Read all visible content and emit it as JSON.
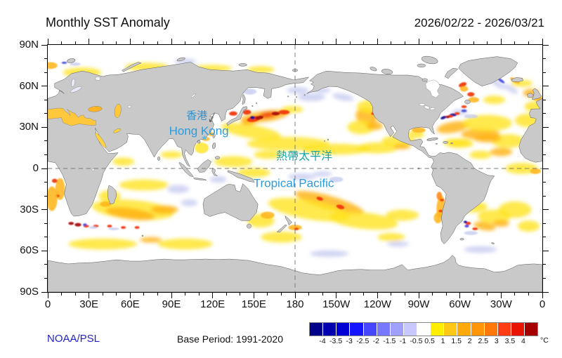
{
  "header": {
    "title": "Monthly SST Anomaly",
    "date_range": "2026/02/22 - 2026/03/21"
  },
  "footer": {
    "source": "NOAA/PSL",
    "base_period": "Base Period: 1991-2020"
  },
  "map_labels": {
    "hk_zh": "香港",
    "hk_en": "Hong Kong",
    "hk_marker": "★",
    "tp_zh": "熱帶太平洋",
    "tp_en": "Tropical Pacific"
  },
  "colors": {
    "label_blue": "#2D9BD9",
    "label_teal": "#1AA3A8",
    "source_blue": "#2222CC",
    "land_gray": "#C9C9C9",
    "coast_stroke": "#555555",
    "ocean_white": "#FFFFFF",
    "dash_gray": "#7A7A7A"
  },
  "axes": {
    "x": {
      "major_step_deg": 30,
      "minor_step_deg": 10,
      "labels": [
        {
          "deg": 0,
          "label": "0"
        },
        {
          "deg": 30,
          "label": "30E"
        },
        {
          "deg": 60,
          "label": "60E"
        },
        {
          "deg": 90,
          "label": "90E"
        },
        {
          "deg": 120,
          "label": "120E"
        },
        {
          "deg": 150,
          "label": "150E"
        },
        {
          "deg": 180,
          "label": "180"
        },
        {
          "deg": 210,
          "label": "150W"
        },
        {
          "deg": 240,
          "label": "120W"
        },
        {
          "deg": 270,
          "label": "90W"
        },
        {
          "deg": 300,
          "label": "60W"
        },
        {
          "deg": 330,
          "label": "30W"
        },
        {
          "deg": 360,
          "label": "0"
        }
      ]
    },
    "y": {
      "major_step_deg": 30,
      "minor_step_deg": 10,
      "labels": [
        {
          "deg": 0,
          "label": "90N"
        },
        {
          "deg": 30,
          "label": "60N"
        },
        {
          "deg": 60,
          "label": "30N"
        },
        {
          "deg": 90,
          "label": "0"
        },
        {
          "deg": 120,
          "label": "30S"
        },
        {
          "deg": 150,
          "label": "60S"
        },
        {
          "deg": 180,
          "label": "90S"
        }
      ]
    }
  },
  "colorbar": {
    "unit": "°C",
    "tick_labels": [
      "-4",
      "-3.5",
      "-3",
      "-2.5",
      "-2",
      "-1.5",
      "-1",
      "-0.5",
      "0.5",
      "1",
      "1.5",
      "2",
      "2.5",
      "3",
      "3.5",
      "4"
    ],
    "colors": [
      "#00008B",
      "#0000AE",
      "#0000D4",
      "#1414FF",
      "#4646FF",
      "#7878FF",
      "#A0A0FF",
      "#C8C8FF",
      "#FFFFFF",
      "#FFEE00",
      "#FFC814",
      "#FFAA0A",
      "#FF960A",
      "#FF780A",
      "#FF3C14",
      "#E61400",
      "#A50000"
    ]
  },
  "map": {
    "palette": {
      "y": "#FFE41E",
      "o": "#FFB414",
      "d": "#FF8C14",
      "r": "#EF3A10",
      "m": "#A81208",
      "lb": "#C6CAF0",
      "b": "#4046E0",
      "nb": "#0C0C96",
      "w": "#FFFFFF"
    },
    "opacity": {
      "y": 0.8,
      "o": 0.85,
      "d": 0.9,
      "r": 0.95,
      "m": 0.95,
      "lb": 0.78,
      "b": 0.9,
      "nb": 0.95,
      "w": 0.9
    },
    "anomaly_blobs": [
      [
        148,
        63,
        22,
        5,
        10,
        "y"
      ],
      [
        175,
        72,
        30,
        5,
        0,
        "y"
      ],
      [
        210,
        76,
        25,
        4,
        0,
        "y"
      ],
      [
        240,
        75,
        15,
        4,
        0,
        "y"
      ],
      [
        158,
        52,
        18,
        4,
        -8,
        "o"
      ],
      [
        150,
        54,
        5,
        2,
        -10,
        "r"
      ],
      [
        160,
        51,
        6,
        2,
        -8,
        "r"
      ],
      [
        154,
        53,
        3,
        1.3,
        -10,
        "m"
      ],
      [
        166,
        50,
        3,
        1.3,
        0,
        "m"
      ],
      [
        172,
        49,
        4,
        1.6,
        0,
        "r"
      ],
      [
        149,
        53,
        1.8,
        1.1,
        0,
        "nb"
      ],
      [
        145,
        49,
        3,
        1.8,
        0,
        "r"
      ],
      [
        135,
        50,
        3,
        1.6,
        0,
        "r"
      ],
      [
        147,
        56,
        6,
        2.2,
        -10,
        "o"
      ],
      [
        178,
        47,
        8,
        2.5,
        0,
        "y"
      ],
      [
        180,
        57,
        9,
        3.5,
        0,
        "w"
      ],
      [
        192,
        38,
        10,
        3,
        0,
        "lb"
      ],
      [
        182,
        33,
        8,
        2.5,
        0,
        "lb"
      ],
      [
        200,
        33,
        6,
        2,
        0,
        "lb"
      ],
      [
        215,
        38,
        8,
        2.5,
        10,
        "lb"
      ],
      [
        230,
        33,
        5,
        2,
        0,
        "lb"
      ],
      [
        232,
        52,
        8,
        6,
        15,
        "o"
      ],
      [
        235,
        45,
        10,
        5,
        0,
        "y"
      ],
      [
        228,
        60,
        10,
        5,
        0,
        "y"
      ],
      [
        238,
        59,
        6,
        3,
        0,
        "o"
      ],
      [
        237,
        50,
        1.6,
        1,
        0,
        "r"
      ],
      [
        255,
        70,
        12,
        4,
        0,
        "y"
      ],
      [
        258,
        74,
        6,
        2,
        0,
        "o"
      ],
      [
        135,
        85,
        14,
        4,
        0,
        "y"
      ],
      [
        150,
        93,
        12,
        3.5,
        0,
        "y"
      ],
      [
        160,
        80,
        10,
        3,
        0,
        "y"
      ],
      [
        185,
        96,
        10,
        2.5,
        0,
        "lb"
      ],
      [
        200,
        94,
        7,
        2,
        0,
        "lb"
      ],
      [
        210,
        98,
        5,
        2,
        0,
        "lb"
      ],
      [
        252,
        88,
        22,
        6,
        0,
        "w"
      ],
      [
        205,
        115,
        26,
        5,
        16,
        "o"
      ],
      [
        213,
        118,
        3,
        1.5,
        16,
        "r"
      ],
      [
        198,
        112,
        2.5,
        1.3,
        16,
        "r"
      ],
      [
        190,
        120,
        30,
        7,
        10,
        "y"
      ],
      [
        230,
        128,
        25,
        6,
        6,
        "y"
      ],
      [
        258,
        124,
        12,
        4,
        0,
        "y"
      ],
      [
        286,
        118,
        3,
        8,
        5,
        "o"
      ],
      [
        287,
        113,
        1.6,
        1,
        0,
        "r"
      ],
      [
        286,
        121,
        1.6,
        1,
        0,
        "r"
      ],
      [
        284,
        126,
        3,
        4,
        0,
        "o"
      ],
      [
        285,
        110,
        2,
        3,
        0,
        "d"
      ],
      [
        155,
        128,
        10,
        5,
        0,
        "y"
      ],
      [
        160,
        124,
        5,
        2.5,
        0,
        "o"
      ],
      [
        180,
        133,
        5,
        2,
        0,
        "o"
      ],
      [
        181,
        134,
        1.6,
        1,
        0,
        "r"
      ],
      [
        170,
        140,
        15,
        4,
        0,
        "y"
      ],
      [
        205,
        152,
        14,
        2.5,
        0,
        "lb"
      ],
      [
        255,
        145,
        8,
        2,
        0,
        "lb"
      ],
      [
        250,
        140,
        10,
        3,
        0,
        "y"
      ],
      [
        315,
        149,
        12,
        2.5,
        0,
        "lb"
      ],
      [
        62,
        120,
        30,
        7,
        5,
        "y"
      ],
      [
        60,
        123,
        18,
        4,
        8,
        "o"
      ],
      [
        85,
        120,
        10,
        3,
        0,
        "o"
      ],
      [
        22,
        131,
        2.4,
        1.3,
        0,
        "m"
      ],
      [
        17,
        130,
        2,
        1.1,
        0,
        "m"
      ],
      [
        28,
        132,
        2,
        1,
        0,
        "r"
      ],
      [
        27,
        131,
        1.4,
        1,
        0,
        "b"
      ],
      [
        35,
        132,
        2,
        1,
        0,
        "r"
      ],
      [
        45,
        132,
        1.8,
        1,
        0,
        "r"
      ],
      [
        55,
        133,
        1.8,
        1,
        0,
        "r"
      ],
      [
        65,
        133,
        1.8,
        1,
        0,
        "r"
      ],
      [
        33,
        133,
        3,
        1,
        0,
        "lb"
      ],
      [
        48,
        134,
        4,
        1,
        0,
        "lb"
      ],
      [
        45,
        110,
        8,
        4,
        0,
        "y"
      ],
      [
        42,
        116,
        4,
        2,
        0,
        "o"
      ],
      [
        70,
        102,
        18,
        4,
        0,
        "y"
      ],
      [
        55,
        85,
        8,
        3,
        0,
        "y"
      ],
      [
        95,
        105,
        8,
        3,
        0,
        "lb"
      ],
      [
        103,
        115,
        6,
        2.5,
        0,
        "lb"
      ],
      [
        90,
        80,
        8,
        2.5,
        0,
        "y"
      ],
      [
        40,
        145,
        25,
        4,
        0,
        "y"
      ],
      [
        100,
        145,
        20,
        4,
        0,
        "y"
      ],
      [
        75,
        142,
        8,
        2,
        0,
        "o"
      ],
      [
        288,
        53,
        2.2,
        1,
        -20,
        "nb"
      ],
      [
        295,
        51,
        2.6,
        1,
        0,
        "nb"
      ],
      [
        293,
        52,
        2,
        1,
        0,
        "r"
      ],
      [
        298,
        50,
        2,
        1,
        0,
        "r"
      ],
      [
        291,
        52.5,
        1.6,
        0.9,
        0,
        "m"
      ],
      [
        300,
        49,
        6,
        2,
        0,
        "lb"
      ],
      [
        303,
        48,
        2,
        1,
        0,
        "b"
      ],
      [
        308,
        52,
        5,
        1.5,
        0,
        "lb"
      ],
      [
        303,
        45,
        2,
        1,
        0,
        "r"
      ],
      [
        295,
        60,
        12,
        4,
        -10,
        "o"
      ],
      [
        315,
        65,
        14,
        4,
        0,
        "o"
      ],
      [
        320,
        57,
        18,
        6,
        0,
        "y"
      ],
      [
        335,
        70,
        12,
        5,
        0,
        "y"
      ],
      [
        330,
        78,
        8,
        3,
        0,
        "o"
      ],
      [
        300,
        72,
        10,
        3,
        0,
        "y"
      ],
      [
        320,
        68,
        10,
        3,
        0,
        "o"
      ],
      [
        315,
        80,
        8,
        3,
        0,
        "y"
      ],
      [
        298,
        71,
        10,
        3,
        0,
        "y"
      ],
      [
        270,
        62,
        5,
        2,
        0,
        "o"
      ],
      [
        268,
        65,
        6,
        3,
        0,
        "y"
      ],
      [
        302,
        29,
        3,
        1.6,
        -20,
        "r"
      ],
      [
        303,
        32,
        3,
        2,
        0,
        "o"
      ],
      [
        308,
        36,
        2.6,
        1.6,
        0,
        "r"
      ],
      [
        310,
        40,
        4,
        2,
        0,
        "o"
      ],
      [
        327,
        28,
        7,
        2,
        35,
        "lb"
      ],
      [
        330,
        26,
        3,
        1,
        35,
        "b"
      ],
      [
        337,
        32,
        6,
        2,
        30,
        "lb"
      ],
      [
        340,
        26,
        4,
        1.5,
        30,
        "o"
      ],
      [
        345,
        28,
        8,
        2.5,
        0,
        "y"
      ],
      [
        352,
        35,
        6,
        3,
        0,
        "o"
      ],
      [
        357,
        39,
        4,
        2,
        0,
        "o"
      ],
      [
        355,
        45,
        8,
        4,
        0,
        "y"
      ],
      [
        350,
        55,
        10,
        5,
        0,
        "y"
      ],
      [
        325,
        40,
        8,
        3,
        0,
        "y"
      ],
      [
        345,
        90,
        12,
        4,
        0,
        "y"
      ],
      [
        355,
        92,
        4,
        2,
        0,
        "o"
      ],
      [
        9,
        105,
        3.5,
        8,
        0,
        "o"
      ],
      [
        7,
        110,
        1.6,
        1,
        0,
        "r"
      ],
      [
        3,
        112,
        4,
        9,
        0,
        "o"
      ],
      [
        5,
        99,
        2,
        1.5,
        0,
        "r"
      ],
      [
        306,
        130,
        2,
        1.2,
        0,
        "r"
      ],
      [
        305,
        132,
        1.6,
        1,
        0,
        "b"
      ],
      [
        304,
        129,
        1.3,
        0.9,
        0,
        "nb"
      ],
      [
        311,
        134,
        2,
        1,
        0,
        "r"
      ],
      [
        318,
        132,
        8,
        3,
        10,
        "o"
      ],
      [
        308,
        137,
        5,
        1.5,
        0,
        "lb"
      ],
      [
        325,
        125,
        12,
        5,
        0,
        "y"
      ],
      [
        310,
        118,
        10,
        4,
        0,
        "y"
      ],
      [
        330,
        130,
        6,
        2.5,
        0,
        "o"
      ],
      [
        340,
        120,
        12,
        6,
        0,
        "y"
      ],
      [
        350,
        132,
        8,
        4,
        0,
        "y"
      ],
      [
        25,
        20,
        14,
        3.5,
        0,
        "y"
      ],
      [
        72,
        16,
        16,
        3,
        0,
        "y"
      ],
      [
        120,
        17,
        14,
        2.5,
        0,
        "y"
      ],
      [
        155,
        18,
        10,
        2.5,
        0,
        "y"
      ],
      [
        2,
        15,
        5,
        2.5,
        0,
        "o"
      ],
      [
        12,
        13,
        2,
        0.8,
        0,
        "b"
      ],
      [
        20,
        14,
        4,
        1.2,
        0,
        "lb"
      ],
      [
        100,
        12,
        8,
        2,
        0,
        "lb"
      ],
      [
        147,
        34,
        5,
        2.2,
        0,
        "lb"
      ],
      [
        115,
        68.5,
        3,
        1.5,
        0,
        "o"
      ],
      [
        119,
        65,
        2,
        1.5,
        0,
        "o"
      ],
      [
        112,
        75,
        5,
        4,
        0,
        "y"
      ],
      [
        124,
        98,
        6,
        2.5,
        0,
        "lb"
      ]
    ]
  }
}
